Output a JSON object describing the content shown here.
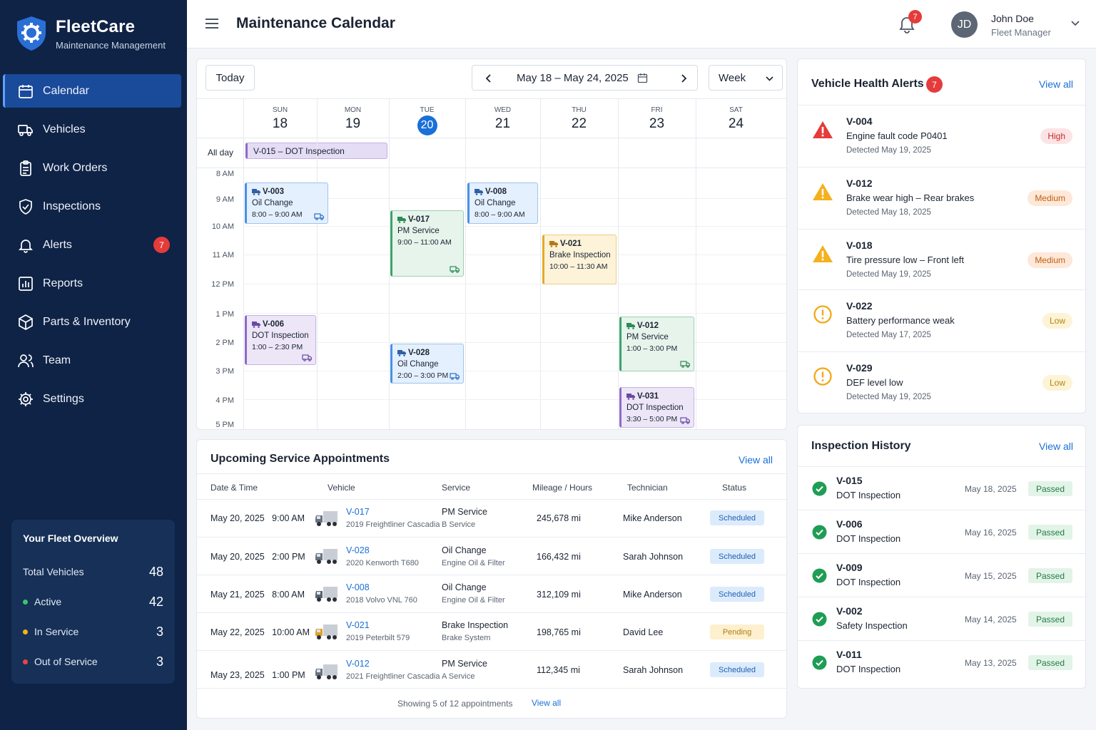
{
  "brand": {
    "name": "FleetCare",
    "subtitle": "Maintenance Management"
  },
  "sidebar": {
    "items": [
      {
        "label": "Calendar",
        "icon": "calendar-icon",
        "active": true
      },
      {
        "label": "Vehicles",
        "icon": "truck-icon"
      },
      {
        "label": "Work Orders",
        "icon": "clipboard-icon"
      },
      {
        "label": "Inspections",
        "icon": "shield-check-icon"
      },
      {
        "label": "Alerts",
        "icon": "bell-icon",
        "badge": "7"
      },
      {
        "label": "Reports",
        "icon": "bar-chart-icon"
      },
      {
        "label": "Parts & Inventory",
        "icon": "box-icon"
      },
      {
        "label": "Team",
        "icon": "users-icon"
      },
      {
        "label": "Settings",
        "icon": "gear-icon"
      }
    ]
  },
  "fleet": {
    "title": "Your Fleet Overview",
    "total_label": "Total Vehicles",
    "total": "48",
    "active_label": "Active",
    "active": "42",
    "service_label": "In Service",
    "service": "3",
    "out_label": "Out of Service",
    "out": "3",
    "colors": {
      "active": "#3cc46a",
      "service": "#f2b21a",
      "out": "#e94545"
    }
  },
  "header": {
    "title": "Maintenance Calendar",
    "notif_count": "7",
    "user_initials": "JD",
    "user_name": "John Doe",
    "user_role": "Fleet Manager"
  },
  "calendar": {
    "today_label": "Today",
    "range": "May 18 – May 24, 2025",
    "view": "Week",
    "all_day_label": "All day",
    "days": [
      {
        "name": "SUN",
        "num": "18"
      },
      {
        "name": "MON",
        "num": "19"
      },
      {
        "name": "TUE",
        "num": "20",
        "today": true
      },
      {
        "name": "WED",
        "num": "21"
      },
      {
        "name": "THU",
        "num": "22"
      },
      {
        "name": "FRI",
        "num": "23"
      },
      {
        "name": "SAT",
        "num": "24"
      }
    ],
    "times": [
      "8 AM",
      "9 AM",
      "10 AM",
      "11 AM",
      "12 PM",
      "1 PM",
      "2 PM",
      "3 PM",
      "4 PM",
      "5 PM"
    ],
    "all_day_event": "V-015 – DOT Inspection",
    "events": [
      {
        "id": "V-003",
        "title": "Oil Change",
        "time": "8:00 – 9:00 AM"
      },
      {
        "id": "V-017",
        "title": "PM Service",
        "time": "9:00 – 11:00 AM"
      },
      {
        "id": "V-008",
        "title": "Oil Change",
        "time": "8:00 – 9:00 AM"
      },
      {
        "id": "V-021",
        "title": "Brake Inspection",
        "time": "10:00 – 11:30 AM"
      },
      {
        "id": "V-006",
        "title": "DOT Inspection",
        "time": "1:00 – 2:30 PM"
      },
      {
        "id": "V-028",
        "title": "Oil Change",
        "time": "2:00 – 3:00 PM"
      },
      {
        "id": "V-012",
        "title": "PM Service",
        "time": "1:00 – 3:00 PM"
      },
      {
        "id": "V-031",
        "title": "DOT Inspection",
        "time": "3:30 – 5:00 PM"
      }
    ]
  },
  "appointments": {
    "title": "Upcoming Service Appointments",
    "view_all": "View all",
    "columns": [
      "Date & Time",
      "Vehicle",
      "Service",
      "Mileage / Hours",
      "Technician",
      "Status"
    ],
    "rows": [
      {
        "datetime": "May 20, 2025   9:00 AM",
        "vid": "V-017",
        "model": "2019 Freightliner Cascadia",
        "service": "PM Service",
        "service_sub": "B Service",
        "mileage": "245,678 mi",
        "tech": "Mike Anderson",
        "status": "Scheduled"
      },
      {
        "datetime": "May 20, 2025   2:00 PM",
        "vid": "V-028",
        "model": "2020 Kenworth T680",
        "service": "Oil Change",
        "service_sub": "Engine Oil & Filter",
        "mileage": "166,432 mi",
        "tech": "Sarah Johnson",
        "status": "Scheduled"
      },
      {
        "datetime": "May 21, 2025   8:00 AM",
        "vid": "V-008",
        "model": "2018 Volvo VNL 760",
        "service": "Oil Change",
        "service_sub": "Engine Oil & Filter",
        "mileage": "312,109 mi",
        "tech": "Mike Anderson",
        "status": "Scheduled"
      },
      {
        "datetime": "May 22, 2025   10:00 AM",
        "vid": "V-021",
        "model": "2019 Peterbilt 579",
        "service": "Brake Inspection",
        "service_sub": "Brake System",
        "mileage": "198,765 mi",
        "tech": "David Lee",
        "status": "Pending"
      },
      {
        "datetime": "May 23, 2025   1:00 PM",
        "vid": "V-012",
        "model": "2021 Freightliner Cascadia",
        "service": "PM Service",
        "service_sub": "A Service",
        "mileage": "112,345 mi",
        "tech": "Sarah Johnson",
        "status": "Scheduled"
      }
    ],
    "footer": "Showing 5 of 12 appointments",
    "footer_link": "View all"
  },
  "alerts": {
    "title": "Vehicle Health Alerts",
    "count": "7",
    "view_all": "View all",
    "items": [
      {
        "id": "V-004",
        "desc": "Engine fault code P0401",
        "date": "Detected May 19, 2025",
        "severity": "High"
      },
      {
        "id": "V-012",
        "desc": "Brake wear high – Rear brakes",
        "date": "Detected May 18, 2025",
        "severity": "Medium"
      },
      {
        "id": "V-018",
        "desc": "Tire pressure low – Front left",
        "date": "Detected May 19, 2025",
        "severity": "Medium"
      },
      {
        "id": "V-022",
        "desc": "Battery performance weak",
        "date": "Detected May 17, 2025",
        "severity": "Low"
      },
      {
        "id": "V-029",
        "desc": "DEF level low",
        "date": "Detected May 19, 2025",
        "severity": "Low"
      }
    ]
  },
  "inspections": {
    "title": "Inspection History",
    "view_all": "View all",
    "items": [
      {
        "id": "V-015",
        "type": "DOT Inspection",
        "date": "May 18, 2025",
        "result": "Passed"
      },
      {
        "id": "V-006",
        "type": "DOT Inspection",
        "date": "May 16, 2025",
        "result": "Passed"
      },
      {
        "id": "V-009",
        "type": "DOT Inspection",
        "date": "May 15, 2025",
        "result": "Passed"
      },
      {
        "id": "V-002",
        "type": "Safety Inspection",
        "date": "May 14, 2025",
        "result": "Passed"
      },
      {
        "id": "V-011",
        "type": "DOT Inspection",
        "date": "May 13, 2025",
        "result": "Passed"
      }
    ]
  }
}
